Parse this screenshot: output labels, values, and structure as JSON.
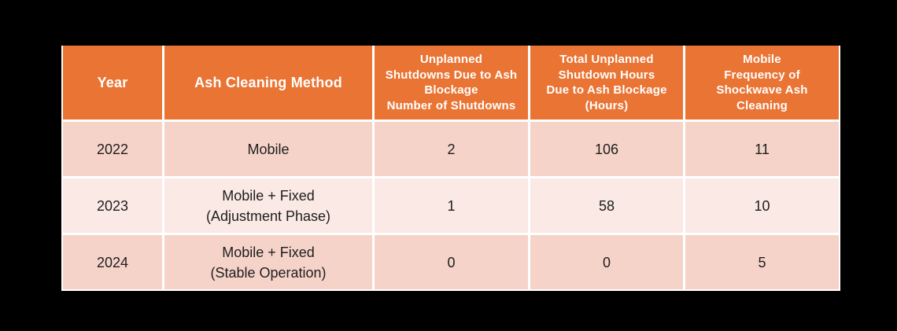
{
  "chart_data": {
    "type": "table",
    "columns": [
      "Year",
      "Ash Cleaning Method",
      "Unplanned\nShutdowns Due to Ash\nBlockage\nNumber of Shutdowns",
      "Total Unplanned\nShutdown Hours\nDue to Ash Blockage\n(Hours)",
      "Mobile\nFrequency of\nShockwave Ash\nCleaning"
    ],
    "rows": [
      [
        "2022",
        "Mobile",
        "2",
        "106",
        "11"
      ],
      [
        "2023",
        "Mobile + Fixed\n(Adjustment Phase)",
        "1",
        "58",
        "10"
      ],
      [
        "2024",
        "Mobile + Fixed\n(Stable Operation)",
        "0",
        "0",
        "5"
      ]
    ],
    "layout": {
      "grid": "on",
      "header_position": "top",
      "alternating_rows": true
    }
  },
  "style": {
    "canvas_bg": "#000000",
    "header_bg": "#E97434",
    "header_text": "#FFFFFF",
    "row_bg": "#F6D3C9",
    "row_alt_bg": "#FAE9E5",
    "body_text": "#1E1E1E",
    "grid_color": "#FFFFFF"
  }
}
